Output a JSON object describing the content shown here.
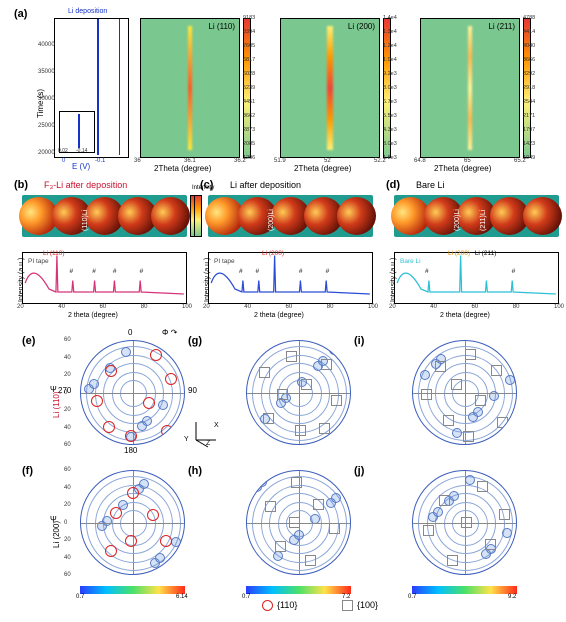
{
  "figure": {
    "a": {
      "label": "(a)",
      "potential": {
        "ylabel": "Time (s)",
        "xlabel": "E (V)",
        "xlabel_color": "#1533c9",
        "yticks": [
          20000,
          25000,
          30000,
          35000,
          40000
        ],
        "xticks": [
          0.0,
          -0.1
        ],
        "curve_label": "Li deposition",
        "curve_color": "#1533c9",
        "inset_xlabel": "E (V)",
        "inset_xticks": [
          "0.02",
          "-0.14"
        ]
      },
      "heatmaps": [
        {
          "title": "Li (110)",
          "xlabel": "2Theta (degree)",
          "xticks": [
            36.0,
            36.1,
            36.2
          ],
          "cb_ticks": [
            "9183",
            "8394",
            "7605",
            "6817",
            "6028",
            "5239",
            "4451",
            "3662",
            "2873",
            "2085",
            "1296"
          ]
        },
        {
          "title": "Li (200)",
          "xlabel": "2Theta (degree)",
          "xticks": [
            51.9,
            52.0,
            52.2
          ],
          "cb_ticks": [
            "1.4e4",
            "1.3e4",
            "1.2e4",
            "1.0e4",
            "9.2e3",
            "8.0e3",
            "6.7e3",
            "5.5e3",
            "4.3e3",
            "3.0e3",
            "1.8e3"
          ]
        },
        {
          "title": "Li (211)",
          "xlabel": "2Theta (degree)",
          "xticks": [
            64.8,
            65.0,
            65.2
          ],
          "cb_ticks": [
            "4788",
            "4414",
            "4040",
            "3666",
            "3292",
            "2918",
            "2544",
            "2171",
            "1797",
            "1423",
            "1049"
          ]
        }
      ]
    },
    "strips": [
      {
        "label": "(b)",
        "title": "F₃-Li after deposition",
        "title_color": "#c8102e",
        "disc_labels": [
          "(110)Li"
        ]
      },
      {
        "label": "(c)",
        "title": "Li after deposition",
        "title_color": "#000",
        "disc_labels": [
          "(200)Li"
        ]
      },
      {
        "label": "(d)",
        "title": "Bare Li",
        "title_color": "#000",
        "disc_labels": [
          "(200)Li",
          "(211)Li"
        ]
      }
    ],
    "xrd": [
      {
        "ylabel": "Intensity (a.u.)",
        "xlabel": "2 theta (degree)",
        "xticks": [
          20,
          40,
          60,
          80,
          100
        ],
        "line_color": "#d6337a",
        "bg_annot": "PI tape",
        "peaks": [
          {
            "label": "Li (110)",
            "color": "#d22",
            "x": 36
          },
          {
            "label": "#",
            "x": 44
          },
          {
            "label": "#",
            "x": 55
          },
          {
            "label": "#",
            "x": 65
          },
          {
            "label": "#",
            "x": 78
          }
        ],
        "intensity_side": "Intensity"
      },
      {
        "ylabel": "Intensity (a.u.)",
        "xlabel": "2 theta (degree)",
        "xticks": [
          20,
          40,
          60,
          80,
          100
        ],
        "line_color": "#2a4cd6",
        "bg_annot": "PI tape",
        "peaks": [
          {
            "label": "#",
            "x": 36
          },
          {
            "label": "#",
            "x": 44
          },
          {
            "label": "Li (200)",
            "color": "#d22",
            "x": 52
          },
          {
            "label": "#",
            "x": 65
          },
          {
            "label": "#",
            "x": 78
          }
        ]
      },
      {
        "ylabel": "Intensity (a.u.)",
        "xlabel": "2 theta (degree)",
        "xticks": [
          20,
          40,
          60,
          80,
          100
        ],
        "line_color": "#2ac0d6",
        "bg_annot": "Bare Li",
        "bg_annot_color": "#2ac0d6",
        "peaks": [
          {
            "label": "#",
            "x": 36
          },
          {
            "label": "Li (200)",
            "color": "#d98c00",
            "x": 52
          },
          {
            "label": "Li (211)",
            "x": 65
          },
          {
            "label": "#",
            "x": 78
          }
        ]
      }
    ],
    "poles": {
      "row_ylabels": [
        {
          "text": "Li (110)",
          "color": "#c8102e"
        },
        {
          "text": "Li (200)",
          "color": "#000"
        }
      ],
      "psi_label": "Ψ",
      "phi_label": "Φ",
      "angles": [
        "0",
        "90",
        "180",
        "270"
      ],
      "psi_ticks": [
        60,
        40,
        20,
        0,
        20,
        40,
        60
      ],
      "labels": [
        "(e)",
        "(f)",
        "(g)",
        "(h)",
        "(i)",
        "(j)"
      ],
      "axes_diagram": {
        "x": "X",
        "y": "Y",
        "z": "Z"
      },
      "legend": [
        {
          "sym": "circle",
          "text": "{110}"
        },
        {
          "sym": "square",
          "text": "{100}"
        }
      ],
      "markers": {
        "e": {
          "type": "circle",
          "pts": [
            [
              75,
              14
            ],
            [
              30,
              30
            ],
            [
              90,
              38
            ],
            [
              16,
              60
            ],
            [
              68,
              62
            ],
            [
              28,
              86
            ],
            [
              86,
              90
            ],
            [
              50,
              95
            ]
          ]
        },
        "f": {
          "type": "circle",
          "pts": [
            [
              52,
              22
            ],
            [
              35,
              42
            ],
            [
              72,
              44
            ],
            [
              50,
              70
            ],
            [
              85,
              70
            ],
            [
              30,
              80
            ]
          ]
        },
        "g": {
          "type": "square",
          "pts": [
            [
              45,
              16
            ],
            [
              80,
              24
            ],
            [
              18,
              32
            ],
            [
              60,
              44
            ],
            [
              36,
              54
            ],
            [
              90,
              60
            ],
            [
              22,
              78
            ],
            [
              54,
              90
            ],
            [
              78,
              88
            ]
          ]
        },
        "h": {
          "type": "square",
          "pts": [
            [
              50,
              12
            ],
            [
              24,
              36
            ],
            [
              72,
              34
            ],
            [
              48,
              52
            ],
            [
              88,
              58
            ],
            [
              34,
              76
            ],
            [
              64,
              90
            ]
          ]
        },
        "i": {
          "type": "square",
          "pts": [
            [
              58,
              14
            ],
            [
              28,
              26
            ],
            [
              84,
              30
            ],
            [
              44,
              44
            ],
            [
              14,
              54
            ],
            [
              68,
              60
            ],
            [
              36,
              80
            ],
            [
              90,
              82
            ],
            [
              56,
              96
            ]
          ]
        },
        "j": {
          "type": "square",
          "pts": [
            [
              70,
              16
            ],
            [
              32,
              30
            ],
            [
              92,
              44
            ],
            [
              54,
              52
            ],
            [
              16,
              60
            ],
            [
              78,
              74
            ],
            [
              40,
              90
            ]
          ]
        }
      },
      "h_colorbars": [
        {
          "min": "0.7",
          "max": "6.14"
        },
        {
          "min": "0.7",
          "max": "7.2"
        },
        {
          "min": "0.7",
          "max": "9.2"
        }
      ]
    },
    "fonts": {
      "panel_label_size": 11,
      "axis_label_size": 8,
      "tick_size": 6
    },
    "background": "#ffffff"
  }
}
